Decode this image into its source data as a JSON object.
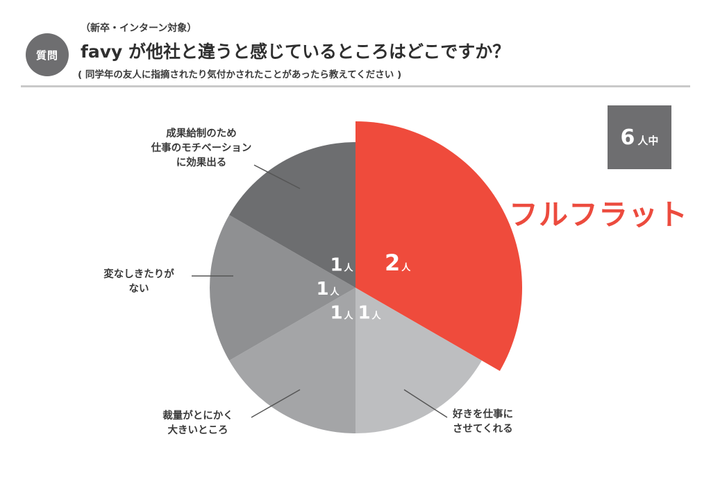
{
  "header": {
    "badge": "質問",
    "subtitle_top": "（新卒・インターン対象）",
    "title": "favy が他社と違うと感じているところはどこですか？",
    "subtitle_bottom": "( 同学年の友人に指摘されたり気付かされたことがあったら教えてください )"
  },
  "total": {
    "number": "6",
    "unit": "人中"
  },
  "highlight_label": "フルフラット",
  "chart_data": {
    "type": "pie",
    "unit": "人",
    "total": 6,
    "slices": [
      {
        "label": "フルフラット",
        "value": 2,
        "color": "#ef4b3c"
      },
      {
        "label": "好きを仕事に\nさせてくれる",
        "value": 1,
        "color": "#bdbec0"
      },
      {
        "label": "裁量がとにかく\n大きいところ",
        "value": 1,
        "color": "#a4a5a7"
      },
      {
        "label": "変なしきたりが\nない",
        "value": 1,
        "color": "#8f9092"
      },
      {
        "label": "成果給制のため\n仕事のモチベーション\nに効果出る",
        "value": 1,
        "color": "#6d6e70"
      }
    ]
  }
}
